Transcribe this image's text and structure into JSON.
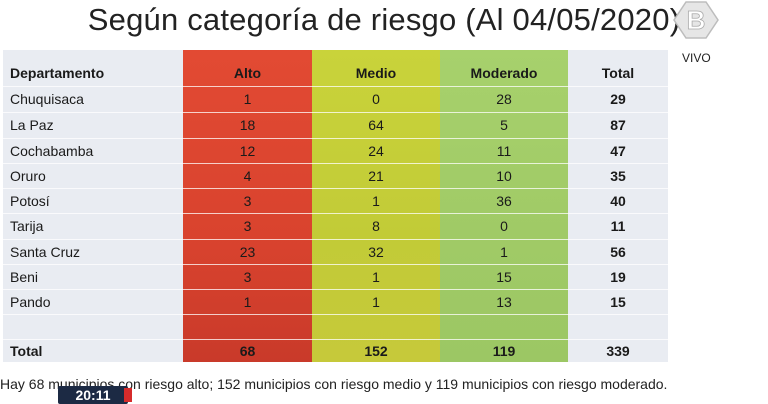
{
  "title": "Según categoría de riesgo (Al 04/05/2020)",
  "live_label": "VIVO",
  "logo_icon": "b-channel-logo-icon",
  "table": {
    "headers": {
      "departamento": "Departamento",
      "alto": "Alto",
      "medio": "Medio",
      "moderado": "Moderado",
      "total": "Total"
    },
    "rows": [
      {
        "departamento": "Chuquisaca",
        "alto": "1",
        "medio": "0",
        "moderado": "28",
        "total": "29"
      },
      {
        "departamento": "La Paz",
        "alto": "18",
        "medio": "64",
        "moderado": "5",
        "total": "87"
      },
      {
        "departamento": "Cochabamba",
        "alto": "12",
        "medio": "24",
        "moderado": "11",
        "total": "47"
      },
      {
        "departamento": "Oruro",
        "alto": "4",
        "medio": "21",
        "moderado": "10",
        "total": "35"
      },
      {
        "departamento": "Potosí",
        "alto": "3",
        "medio": "1",
        "moderado": "36",
        "total": "40"
      },
      {
        "departamento": "Tarija",
        "alto": "3",
        "medio": "8",
        "moderado": "0",
        "total": "11"
      },
      {
        "departamento": "Santa Cruz",
        "alto": "23",
        "medio": "32",
        "moderado": "1",
        "total": "56"
      },
      {
        "departamento": "Beni",
        "alto": "3",
        "medio": "1",
        "moderado": "15",
        "total": "19"
      },
      {
        "departamento": "Pando",
        "alto": "1",
        "medio": "1",
        "moderado": "13",
        "total": "15"
      }
    ],
    "total_row": {
      "departamento": "Total",
      "alto": "68",
      "medio": "152",
      "moderado": "119",
      "total": "339"
    }
  },
  "ticker": "Hay 68 municipios con riesgo alto; 152 municipios con riesgo medio y 119 municipios con riesgo moderado.",
  "clock": "20:11",
  "colors": {
    "alto": "#d9432e",
    "medio": "#c2cb37",
    "moderado": "#a0ca66",
    "table_bg": "#e9ecf2",
    "clock_bg": "#1c2a44"
  }
}
